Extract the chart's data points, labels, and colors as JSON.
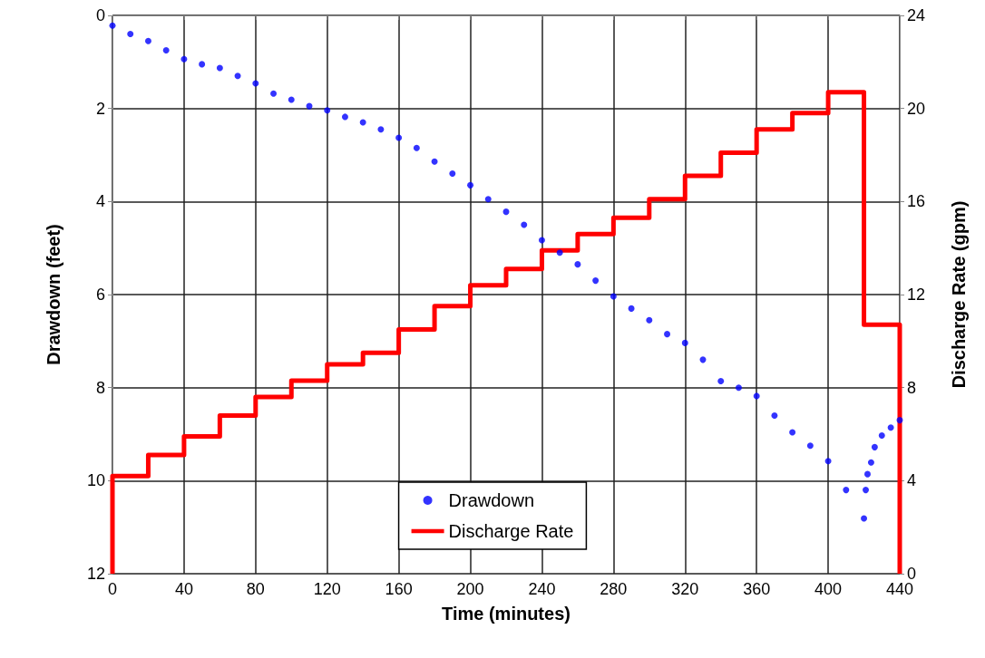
{
  "chart_data": {
    "type": "scatter",
    "xlabel": "Time (minutes)",
    "ylabel": "Drawdown (feet)",
    "y2label": "Discharge Rate (gpm)",
    "xlim": [
      0,
      440
    ],
    "xticks": [
      0,
      40,
      80,
      120,
      160,
      200,
      240,
      280,
      320,
      360,
      400,
      440
    ],
    "ylim": [
      12,
      0
    ],
    "yticks": [
      0,
      2,
      4,
      6,
      8,
      10,
      12
    ],
    "y2lim": [
      0,
      24
    ],
    "y2ticks": [
      0,
      4,
      8,
      12,
      16,
      20,
      24
    ],
    "grid": true,
    "legend": "bottom",
    "series": [
      {
        "name": "Drawdown",
        "marker": "circle",
        "color": "#0000ff",
        "x": [
          0,
          10,
          20,
          30,
          40,
          50,
          60,
          70,
          80,
          90,
          100,
          110,
          120,
          130,
          140,
          150,
          160,
          170,
          180,
          190,
          200,
          210,
          220,
          230,
          240,
          250,
          260,
          270,
          280,
          290,
          300,
          310,
          320,
          330,
          340,
          350,
          360,
          370,
          380,
          390,
          400,
          410,
          420,
          421,
          422,
          424,
          426,
          430,
          435,
          440
        ],
        "values": [
          0.22,
          0.4,
          0.55,
          0.75,
          0.94,
          1.05,
          1.13,
          1.3,
          1.46,
          1.68,
          1.81,
          1.95,
          2.04,
          2.18,
          2.3,
          2.45,
          2.63,
          2.85,
          3.14,
          3.4,
          3.65,
          3.95,
          4.22,
          4.5,
          4.83,
          5.1,
          5.35,
          5.7,
          6.04,
          6.3,
          6.55,
          6.85,
          7.04,
          7.4,
          7.86,
          8.0,
          8.18,
          8.6,
          8.96,
          9.25,
          9.58,
          10.2,
          10.81,
          10.2,
          9.86,
          9.61,
          9.28,
          9.03,
          8.86,
          8.7
        ]
      },
      {
        "name": "Discharge Rate",
        "type": "step",
        "axis": "y2",
        "color": "#ff0000",
        "x": [
          0,
          0,
          20,
          40,
          60,
          80,
          100,
          120,
          140,
          160,
          180,
          200,
          220,
          240,
          260,
          280,
          300,
          320,
          340,
          360,
          380,
          400,
          420,
          440
        ],
        "values": [
          0,
          4.2,
          5.1,
          5.9,
          6.8,
          7.6,
          8.3,
          9.0,
          9.5,
          10.5,
          11.5,
          12.4,
          13.1,
          13.9,
          14.6,
          15.3,
          16.1,
          17.1,
          18.1,
          19.1,
          19.8,
          20.7,
          10.7,
          0
        ]
      }
    ]
  }
}
